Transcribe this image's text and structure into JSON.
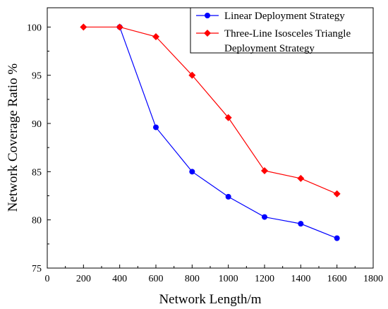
{
  "chart_data": {
    "type": "line",
    "xlabel": "Network Length/m",
    "ylabel": "Network Coverage Ratio %",
    "xlim": [
      0,
      1800
    ],
    "ylim": [
      75,
      102
    ],
    "xticks": [
      0,
      200,
      400,
      600,
      800,
      1000,
      1200,
      1400,
      1600,
      1800
    ],
    "yticks": [
      75,
      80,
      85,
      90,
      95,
      100
    ],
    "x_tick_labels": [
      "0",
      "200",
      "400",
      "600",
      "800",
      "1000",
      "1200",
      "1400",
      "1600",
      "1800"
    ],
    "y_tick_labels": [
      "75",
      "80",
      "85",
      "90",
      "95",
      "100"
    ],
    "grid": false,
    "legend_position": "top-right",
    "series": [
      {
        "name": "Linear Deployment Strategy",
        "color": "#0000ff",
        "marker": "circle",
        "x": [
          400,
          600,
          800,
          1000,
          1200,
          1400,
          1600
        ],
        "y": [
          100,
          89.6,
          85.0,
          82.4,
          80.3,
          79.6,
          78.1
        ]
      },
      {
        "name": "Three-Line Isosceles Triangle Deployment Strategy",
        "name_lines": [
          "Three-Line Isosceles Triangle",
          "Deployment Strategy"
        ],
        "color": "#ff0000",
        "marker": "diamond",
        "x": [
          200,
          400,
          600,
          800,
          1000,
          1200,
          1400,
          1600
        ],
        "y": [
          100,
          100,
          99.0,
          95.0,
          90.6,
          85.1,
          84.3,
          82.7
        ]
      }
    ]
  }
}
